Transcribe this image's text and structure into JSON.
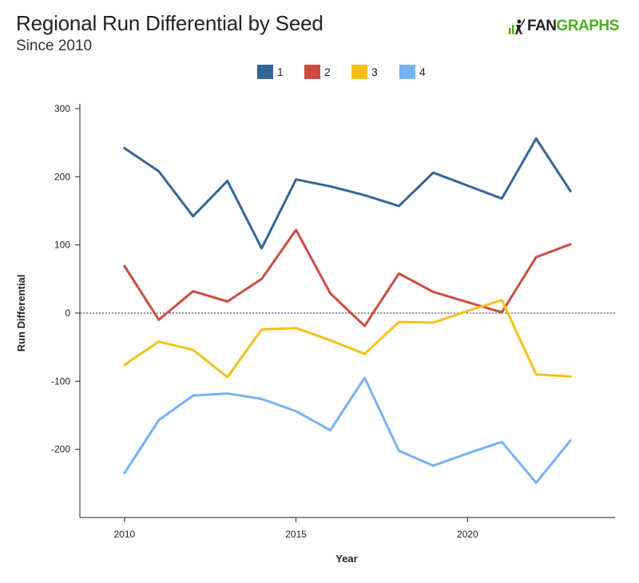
{
  "header": {
    "title": "Regional Run Differential by Seed",
    "subtitle": "Since 2010"
  },
  "logo": {
    "text_dark": "FAN",
    "text_green": "GRAPHS",
    "icon": "fangraphs-batter-logo-icon",
    "colors": {
      "dark": "#222222",
      "green": "#4caf21"
    }
  },
  "chart_data": {
    "type": "line",
    "title": "Regional Run Differential by Seed",
    "subtitle": "Since 2010",
    "xlabel": "Year",
    "ylabel": "Run Differential",
    "xlim": [
      2008.7,
      2024.3
    ],
    "ylim": [
      -300,
      300
    ],
    "xticks": [
      2010,
      2015,
      2020
    ],
    "yticks": [
      300,
      200,
      100,
      0,
      -100,
      -200
    ],
    "ytick_labels": [
      "300",
      "200",
      "100",
      "0",
      "-100",
      "-200"
    ],
    "zero_line": "dashed",
    "legend_position": "top-center",
    "grid": false,
    "x": [
      2010,
      2011,
      2012,
      2013,
      2014,
      2015,
      2016,
      2017,
      2018,
      2019,
      2020,
      2021,
      2022,
      2023
    ],
    "series": [
      {
        "name": "1",
        "color": "#336699",
        "values": [
          242,
          208,
          142,
          194,
          95,
          196,
          186,
          173,
          157,
          206,
          187,
          168,
          256,
          179
        ]
      },
      {
        "name": "2",
        "color": "#cc4a44",
        "values": [
          69,
          -10,
          32,
          17,
          50,
          122,
          29,
          -19,
          58,
          31,
          16,
          1,
          82,
          101
        ]
      },
      {
        "name": "3",
        "color": "#f5c118",
        "values": [
          -76,
          -42,
          -54,
          -94,
          -24,
          -22,
          -40,
          -60,
          -13,
          -14,
          3,
          19,
          -90,
          -93
        ]
      },
      {
        "name": "4",
        "color": "#77b3f5",
        "values": [
          -235,
          -157,
          -121,
          -118,
          -126,
          -144,
          -172,
          -95,
          -202,
          -224,
          -206,
          -189,
          -249,
          -187
        ]
      }
    ]
  }
}
